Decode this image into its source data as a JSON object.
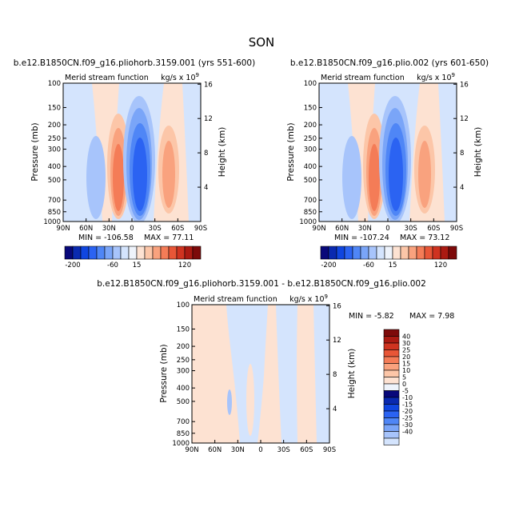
{
  "page_title": "SON",
  "colors": {
    "blues": [
      "#08087a",
      "#0a2ab0",
      "#1046e0",
      "#2b63f2",
      "#4f86f6",
      "#7aa5f8",
      "#a7c4fb",
      "#d4e4fd"
    ],
    "neutral": "#eef3fb",
    "reds": [
      "#fde2d2",
      "#fcc6a8",
      "#f9a27e",
      "#f47c57",
      "#e85637",
      "#cf3320",
      "#ab1a12",
      "#7d0a0a"
    ]
  },
  "chart_data": [
    {
      "type": "contour",
      "panel_title": "b.e12.B1850CN.f09_g16.pliohorb.3159.001 (yrs 551-600)",
      "field_name": "Merid stream function",
      "units": "kg/s x 10",
      "units_exponent": "9",
      "ylabel": "Pressure (mb)",
      "y2label": "Height (km)",
      "x_ticks": [
        "90N",
        "60N",
        "30N",
        "0",
        "30S",
        "60S",
        "90S"
      ],
      "y_ticks": [
        "100",
        "150",
        "200",
        "250",
        "300",
        "400",
        "500",
        "700",
        "850",
        "1000"
      ],
      "y2_ticks": [
        "4",
        "8",
        "12",
        "16"
      ],
      "xlim": [
        90,
        -90
      ],
      "ylim_mb": [
        1000,
        100
      ],
      "min_text": "MIN = -106.58",
      "max_text": "MAX = 77.11",
      "colorbar_labels": [
        "-200",
        "-60",
        "15",
        "120"
      ]
    },
    {
      "type": "contour",
      "panel_title": "b.e12.B1850CN.f09_g16.plio.002 (yrs 601-650)",
      "field_name": "Merid stream function",
      "units": "kg/s x 10",
      "units_exponent": "9",
      "ylabel": "Pressure (mb)",
      "y2label": "Height (km)",
      "x_ticks": [
        "90N",
        "60N",
        "30N",
        "0",
        "30S",
        "60S",
        "90S"
      ],
      "y_ticks": [
        "100",
        "150",
        "200",
        "250",
        "300",
        "400",
        "500",
        "700",
        "850",
        "1000"
      ],
      "y2_ticks": [
        "4",
        "8",
        "12",
        "16"
      ],
      "xlim": [
        90,
        -90
      ],
      "ylim_mb": [
        1000,
        100
      ],
      "min_text": "MIN = -107.24",
      "max_text": "MAX = 73.12",
      "colorbar_labels": [
        "-200",
        "-60",
        "15",
        "120"
      ]
    },
    {
      "type": "contour",
      "panel_title": "b.e12.B1850CN.f09_g16.pliohorb.3159.001 - b.e12.B1850CN.f09_g16.plio.002",
      "field_name": "Merid stream function",
      "units": "kg/s x 10",
      "units_exponent": "9",
      "ylabel": "Pressure (mb)",
      "y2label": "Height (km)",
      "x_ticks": [
        "90N",
        "60N",
        "30N",
        "0",
        "30S",
        "60S",
        "90S"
      ],
      "y_ticks": [
        "100",
        "150",
        "200",
        "250",
        "300",
        "400",
        "500",
        "700",
        "850",
        "1000"
      ],
      "y2_ticks": [
        "4",
        "8",
        "12",
        "16"
      ],
      "xlim": [
        90,
        -90
      ],
      "ylim_mb": [
        1000,
        100
      ],
      "min_text": "MIN = -5.82",
      "max_text": "MAX = 7.98",
      "colorbar_labels": [
        "40",
        "30",
        "25",
        "20",
        "15",
        "10",
        "5",
        "0",
        "-5",
        "-10",
        "-15",
        "-20",
        "-25",
        "-30",
        "-40"
      ]
    }
  ]
}
